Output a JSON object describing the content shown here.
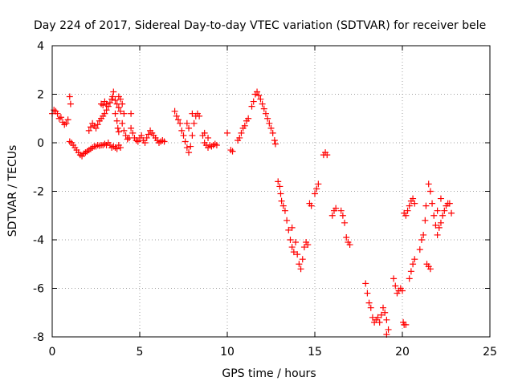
{
  "chart_data": {
    "type": "scatter",
    "title": "Day 224 of 2017, Sidereal Day-to-day VTEC variation (SDTVAR) for receiver bele",
    "xlabel": "GPS time / hours",
    "ylabel": "SDTVAR / TECUs",
    "xlim": [
      0,
      25
    ],
    "ylim": [
      -8,
      4
    ],
    "xticks": [
      0,
      5,
      10,
      15,
      20,
      25
    ],
    "yticks": [
      -8,
      -6,
      -4,
      -2,
      0,
      2,
      4
    ],
    "grid": true,
    "marker": "+",
    "marker_color": "#ff0000",
    "series": [
      {
        "points": [
          [
            0.0,
            1.2
          ],
          [
            0.1,
            1.35
          ],
          [
            0.2,
            1.3
          ],
          [
            0.3,
            1.2
          ],
          [
            0.4,
            1.0
          ],
          [
            0.5,
            1.05
          ],
          [
            0.6,
            0.85
          ],
          [
            0.7,
            0.75
          ],
          [
            0.8,
            0.8
          ],
          [
            0.9,
            0.95
          ],
          [
            1.0,
            1.9
          ],
          [
            1.05,
            1.6
          ],
          [
            1.0,
            0.05
          ],
          [
            1.1,
            0.0
          ],
          [
            1.2,
            -0.1
          ],
          [
            1.3,
            -0.2
          ],
          [
            1.4,
            -0.3
          ],
          [
            1.5,
            -0.4
          ],
          [
            1.6,
            -0.5
          ],
          [
            1.7,
            -0.55
          ],
          [
            1.8,
            -0.45
          ],
          [
            1.9,
            -0.4
          ],
          [
            2.0,
            -0.35
          ],
          [
            2.1,
            -0.3
          ],
          [
            2.2,
            -0.25
          ],
          [
            2.3,
            -0.2
          ],
          [
            2.4,
            -0.15
          ],
          [
            2.5,
            -0.15
          ],
          [
            2.6,
            -0.1
          ],
          [
            2.7,
            -0.12
          ],
          [
            2.8,
            -0.1
          ],
          [
            2.9,
            -0.1
          ],
          [
            3.0,
            -0.05
          ],
          [
            3.1,
            -0.1
          ],
          [
            3.2,
            0.0
          ],
          [
            3.3,
            -0.1
          ],
          [
            3.4,
            -0.2
          ],
          [
            3.5,
            -0.15
          ],
          [
            3.6,
            -0.2
          ],
          [
            3.7,
            -0.25
          ],
          [
            3.8,
            -0.1
          ],
          [
            3.9,
            -0.2
          ],
          [
            2.1,
            0.5
          ],
          [
            2.2,
            0.65
          ],
          [
            2.3,
            0.8
          ],
          [
            2.4,
            0.7
          ],
          [
            2.5,
            0.6
          ],
          [
            2.6,
            0.75
          ],
          [
            2.7,
            0.9
          ],
          [
            2.8,
            1.0
          ],
          [
            2.9,
            1.1
          ],
          [
            3.0,
            1.2
          ],
          [
            3.1,
            1.35
          ],
          [
            3.2,
            1.5
          ],
          [
            3.3,
            1.65
          ],
          [
            3.4,
            1.8
          ],
          [
            3.5,
            2.1
          ],
          [
            3.45,
            1.9
          ],
          [
            3.6,
            1.75
          ],
          [
            3.7,
            1.6
          ],
          [
            3.8,
            1.45
          ],
          [
            3.9,
            1.3
          ],
          [
            3.6,
            1.2
          ],
          [
            3.7,
            0.9
          ],
          [
            3.75,
            0.6
          ],
          [
            3.8,
            0.45
          ],
          [
            2.8,
            1.6
          ],
          [
            2.9,
            1.55
          ],
          [
            3.0,
            1.7
          ],
          [
            3.1,
            1.6
          ],
          [
            3.8,
            1.9
          ],
          [
            3.9,
            1.8
          ],
          [
            4.0,
            1.6
          ],
          [
            4.1,
            1.2
          ],
          [
            4.0,
            0.8
          ],
          [
            4.1,
            0.5
          ],
          [
            4.2,
            0.3
          ],
          [
            4.3,
            0.15
          ],
          [
            4.4,
            0.2
          ],
          [
            4.5,
            0.6
          ],
          [
            4.5,
            1.2
          ],
          [
            4.6,
            0.4
          ],
          [
            4.7,
            0.2
          ],
          [
            4.8,
            0.1
          ],
          [
            4.9,
            0.05
          ],
          [
            5.0,
            0.2
          ],
          [
            5.1,
            0.3
          ],
          [
            5.2,
            0.1
          ],
          [
            5.3,
            0.0
          ],
          [
            5.4,
            0.2
          ],
          [
            5.5,
            0.35
          ],
          [
            5.6,
            0.5
          ],
          [
            5.7,
            0.4
          ],
          [
            5.8,
            0.3
          ],
          [
            5.9,
            0.2
          ],
          [
            6.0,
            0.1
          ],
          [
            6.1,
            0.0
          ],
          [
            6.2,
            0.05
          ],
          [
            6.3,
            0.1
          ],
          [
            6.4,
            0.05
          ],
          [
            7.0,
            1.3
          ],
          [
            7.1,
            1.1
          ],
          [
            7.2,
            0.95
          ],
          [
            7.3,
            0.8
          ],
          [
            7.4,
            0.5
          ],
          [
            7.5,
            0.3
          ],
          [
            7.6,
            0.05
          ],
          [
            7.7,
            -0.2
          ],
          [
            7.8,
            -0.4
          ],
          [
            7.9,
            -0.15
          ],
          [
            8.0,
            0.3
          ],
          [
            8.1,
            0.8
          ],
          [
            8.2,
            1.1
          ],
          [
            8.3,
            1.2
          ],
          [
            8.4,
            1.1
          ],
          [
            7.7,
            0.8
          ],
          [
            7.8,
            0.6
          ],
          [
            8.0,
            1.2
          ],
          [
            8.6,
            0.3
          ],
          [
            8.7,
            0.0
          ],
          [
            8.8,
            -0.1
          ],
          [
            8.9,
            -0.2
          ],
          [
            9.0,
            -0.1
          ],
          [
            9.1,
            -0.15
          ],
          [
            9.2,
            -0.1
          ],
          [
            9.3,
            -0.05
          ],
          [
            9.4,
            -0.1
          ],
          [
            8.7,
            0.4
          ],
          [
            8.9,
            0.2
          ],
          [
            10.0,
            0.4
          ],
          [
            10.2,
            -0.3
          ],
          [
            10.3,
            -0.35
          ],
          [
            10.6,
            0.1
          ],
          [
            10.7,
            0.2
          ],
          [
            10.8,
            0.4
          ],
          [
            10.9,
            0.6
          ],
          [
            11.0,
            0.7
          ],
          [
            11.1,
            0.9
          ],
          [
            11.2,
            1.0
          ],
          [
            11.4,
            1.5
          ],
          [
            11.5,
            1.7
          ],
          [
            11.6,
            2.0
          ],
          [
            11.7,
            2.1
          ],
          [
            11.8,
            1.95
          ],
          [
            11.9,
            1.8
          ],
          [
            12.0,
            1.6
          ],
          [
            12.1,
            1.4
          ],
          [
            12.2,
            1.2
          ],
          [
            12.3,
            1.0
          ],
          [
            12.4,
            0.8
          ],
          [
            12.5,
            0.6
          ],
          [
            12.6,
            0.4
          ],
          [
            12.7,
            0.1
          ],
          [
            12.75,
            -0.05
          ],
          [
            12.9,
            -1.6
          ],
          [
            13.0,
            -1.8
          ],
          [
            13.05,
            -2.1
          ],
          [
            13.1,
            -2.4
          ],
          [
            13.2,
            -2.6
          ],
          [
            13.3,
            -2.8
          ],
          [
            13.4,
            -3.2
          ],
          [
            13.5,
            -3.6
          ],
          [
            13.6,
            -4.0
          ],
          [
            13.7,
            -4.3
          ],
          [
            13.8,
            -4.5
          ],
          [
            13.7,
            -3.5
          ],
          [
            13.9,
            -4.1
          ],
          [
            14.0,
            -4.6
          ],
          [
            14.1,
            -5.0
          ],
          [
            14.2,
            -5.2
          ],
          [
            14.3,
            -4.8
          ],
          [
            14.4,
            -4.3
          ],
          [
            14.5,
            -4.1
          ],
          [
            14.6,
            -4.2
          ],
          [
            14.7,
            -2.5
          ],
          [
            14.8,
            -2.6
          ],
          [
            15.0,
            -2.1
          ],
          [
            15.1,
            -1.9
          ],
          [
            15.2,
            -1.7
          ],
          [
            15.5,
            -0.5
          ],
          [
            15.6,
            -0.4
          ],
          [
            15.7,
            -0.5
          ],
          [
            16.0,
            -3.0
          ],
          [
            16.1,
            -2.8
          ],
          [
            16.2,
            -2.7
          ],
          [
            16.5,
            -2.8
          ],
          [
            16.6,
            -3.0
          ],
          [
            16.7,
            -3.3
          ],
          [
            16.8,
            -3.9
          ],
          [
            16.9,
            -4.1
          ],
          [
            17.0,
            -4.2
          ],
          [
            17.9,
            -5.8
          ],
          [
            18.0,
            -6.2
          ],
          [
            18.1,
            -6.6
          ],
          [
            18.2,
            -6.8
          ],
          [
            18.3,
            -7.2
          ],
          [
            18.4,
            -7.4
          ],
          [
            18.5,
            -7.3
          ],
          [
            18.6,
            -7.2
          ],
          [
            18.7,
            -7.4
          ],
          [
            18.8,
            -7.1
          ],
          [
            18.9,
            -6.8
          ],
          [
            19.0,
            -7.0
          ],
          [
            19.1,
            -7.3
          ],
          [
            19.2,
            -7.7
          ],
          [
            19.1,
            -7.9
          ],
          [
            19.5,
            -5.6
          ],
          [
            19.6,
            -5.9
          ],
          [
            19.7,
            -6.2
          ],
          [
            19.8,
            -6.1
          ],
          [
            19.9,
            -6.0
          ],
          [
            20.0,
            -6.1
          ],
          [
            20.05,
            -7.4
          ],
          [
            20.1,
            -7.5
          ],
          [
            20.2,
            -7.5
          ],
          [
            20.1,
            -2.9
          ],
          [
            20.2,
            -3.0
          ],
          [
            20.3,
            -2.8
          ],
          [
            20.4,
            -2.6
          ],
          [
            20.5,
            -2.4
          ],
          [
            20.6,
            -2.3
          ],
          [
            20.7,
            -2.5
          ],
          [
            20.4,
            -5.6
          ],
          [
            20.5,
            -5.3
          ],
          [
            20.6,
            -5.0
          ],
          [
            20.7,
            -4.8
          ],
          [
            21.0,
            -4.4
          ],
          [
            21.1,
            -4.0
          ],
          [
            21.2,
            -3.8
          ],
          [
            21.3,
            -3.2
          ],
          [
            21.35,
            -2.6
          ],
          [
            21.4,
            -5.0
          ],
          [
            21.5,
            -5.1
          ],
          [
            21.6,
            -5.2
          ],
          [
            21.5,
            -1.7
          ],
          [
            21.6,
            -2.0
          ],
          [
            21.7,
            -2.5
          ],
          [
            21.8,
            -3.0
          ],
          [
            21.9,
            -3.4
          ],
          [
            22.0,
            -3.8
          ],
          [
            22.1,
            -3.5
          ],
          [
            22.2,
            -3.3
          ],
          [
            22.3,
            -3.0
          ],
          [
            22.4,
            -2.8
          ],
          [
            22.5,
            -2.6
          ],
          [
            22.6,
            -2.5
          ],
          [
            22.7,
            -2.5
          ],
          [
            22.8,
            -2.9
          ],
          [
            22.2,
            -2.3
          ],
          [
            22.0,
            -2.8
          ]
        ]
      }
    ]
  }
}
